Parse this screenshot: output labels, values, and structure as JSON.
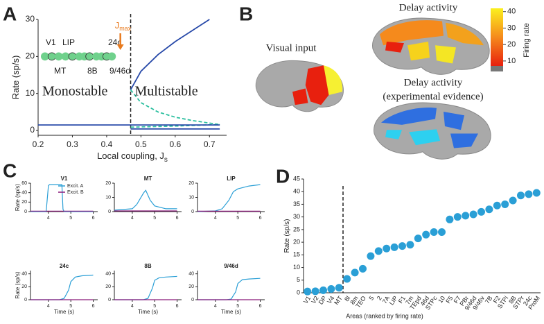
{
  "panel_labels": [
    "A",
    "B",
    "C",
    "D"
  ],
  "brain": {
    "visual_input": "Visual input",
    "delay_activity": "Delay activity",
    "delay_evidence": [
      "Delay activity",
      "(experimental evidence)"
    ],
    "colorbar": {
      "lim": [
        7,
        42
      ],
      "ticks": [
        10,
        20,
        30,
        40
      ],
      "label": "Firing rate"
    }
  },
  "chart_data": [
    {
      "type": "line",
      "xlabel": "Local coupling, J",
      "xlabel_sub": "s",
      "ylabel": "Rate (sp/s)",
      "xlim": [
        0.2,
        0.75
      ],
      "xticks": [
        0.2,
        0.3,
        0.4,
        0.5,
        0.6,
        0.7
      ],
      "ylim": [
        -1.3,
        30
      ],
      "yticks": [
        0,
        10,
        20,
        30
      ],
      "vline": 0.47,
      "regions": [
        "Monostable",
        "Multistable"
      ],
      "marker_label": "J",
      "marker_label_sub": "max",
      "marker_x": 0.44,
      "annotations": [
        "V1",
        "LIP",
        "24c",
        "MT",
        "8B",
        "9/46d"
      ],
      "series": [
        {
          "color": "#2648a8",
          "dash": false,
          "x": [
            0.47,
            0.5,
            0.55,
            0.6,
            0.65,
            0.7
          ],
          "values": [
            11,
            16,
            20.5,
            24,
            27,
            30
          ]
        },
        {
          "color": "#2bbf9f",
          "dash": true,
          "x": [
            0.47,
            0.5,
            0.55,
            0.6,
            0.65,
            0.7,
            0.73
          ],
          "values": [
            11,
            7.5,
            5,
            3.6,
            2.7,
            2,
            1.6
          ]
        },
        {
          "color": "#2bbf9f",
          "dash": true,
          "x": [
            0.47,
            0.6,
            0.73
          ],
          "values": [
            0.9,
            1.2,
            1.6
          ]
        },
        {
          "color": "#2648a8",
          "dash": false,
          "x": [
            0.2,
            0.73
          ],
          "values": [
            1.5,
            1.5
          ]
        },
        {
          "color": "#2648a8",
          "dash": false,
          "x": [
            0.47,
            0.73
          ],
          "values": [
            0.4,
            0.4
          ]
        }
      ],
      "points": {
        "color": "#6fd18c",
        "x": [
          0.22,
          0.24,
          0.26,
          0.28,
          0.3,
          0.32,
          0.335,
          0.35,
          0.37,
          0.385,
          0.4,
          0.415
        ],
        "values": [
          20,
          20,
          20,
          20,
          20,
          20,
          20,
          20,
          20,
          20,
          20,
          20
        ]
      }
    },
    {
      "type": "line",
      "title": "V1",
      "ylabel": "Rate (sp/s)",
      "xlim": [
        3.2,
        6.2
      ],
      "xticks": [
        4,
        5,
        6
      ],
      "ylim": [
        0,
        60
      ],
      "yticks": [
        0,
        20,
        40,
        60
      ],
      "series": [
        {
          "name": "Excit. A",
          "color": "#2a9fd6",
          "x": [
            3.2,
            3.9,
            4.0,
            4.05,
            4.6,
            4.65,
            4.7,
            6
          ],
          "values": [
            0,
            0,
            55,
            57,
            57,
            5,
            0,
            0
          ]
        },
        {
          "name": "Excit. B",
          "color": "#8b1a7a",
          "x": [
            3.2,
            6
          ],
          "values": [
            1,
            1
          ]
        }
      ]
    },
    {
      "type": "line",
      "title": "MT",
      "xlim": [
        3.2,
        6.2
      ],
      "xticks": [
        4,
        5,
        6
      ],
      "ylim": [
        0,
        20
      ],
      "yticks": [
        0,
        10,
        20
      ],
      "series": [
        {
          "color": "#2a9fd6",
          "x": [
            3.2,
            4,
            4.2,
            4.5,
            4.6,
            4.8,
            5,
            5.5,
            6
          ],
          "values": [
            1,
            2,
            5,
            13,
            15,
            8,
            4,
            2,
            2
          ]
        },
        {
          "color": "#8b1a7a",
          "x": [
            3.2,
            6
          ],
          "values": [
            0.5,
            0.5
          ]
        }
      ]
    },
    {
      "type": "line",
      "title": "LIP",
      "xlim": [
        3.2,
        6.2
      ],
      "xticks": [
        4,
        5,
        6
      ],
      "ylim": [
        0,
        20
      ],
      "yticks": [
        0,
        10,
        20
      ],
      "series": [
        {
          "color": "#2a9fd6",
          "x": [
            3.2,
            4,
            4.3,
            4.6,
            4.8,
            5,
            5.5,
            6
          ],
          "values": [
            0,
            0.5,
            2,
            8,
            14,
            16,
            18,
            19
          ]
        },
        {
          "color": "#8b1a7a",
          "x": [
            3.2,
            6
          ],
          "values": [
            0.3,
            0.3
          ]
        }
      ]
    },
    {
      "type": "line",
      "title": "24c",
      "ylabel": "Rate (sp/s)",
      "xlabel": "Time (s)",
      "xlim": [
        3.2,
        6.2
      ],
      "xticks": [
        4,
        5,
        6
      ],
      "ylim": [
        0,
        45
      ],
      "yticks": [
        0,
        20,
        40
      ],
      "series": [
        {
          "color": "#2a9fd6",
          "x": [
            3.2,
            4.5,
            4.7,
            4.9,
            5,
            5.2,
            5.5,
            6
          ],
          "values": [
            0,
            0,
            2,
            15,
            28,
            35,
            37,
            38
          ]
        },
        {
          "color": "#8b1a7a",
          "x": [
            3.2,
            6
          ],
          "values": [
            0,
            0
          ]
        }
      ]
    },
    {
      "type": "line",
      "title": "8B",
      "xlabel": "Time (s)",
      "xlim": [
        3.2,
        6.2
      ],
      "xticks": [
        4,
        5,
        6
      ],
      "ylim": [
        0,
        45
      ],
      "yticks": [
        0,
        20,
        40
      ],
      "series": [
        {
          "color": "#2a9fd6",
          "x": [
            3.2,
            4.5,
            4.7,
            4.9,
            5,
            5.2,
            5.5,
            6
          ],
          "values": [
            0,
            0,
            2,
            18,
            30,
            34,
            35,
            36
          ]
        },
        {
          "color": "#8b1a7a",
          "x": [
            3.2,
            6
          ],
          "values": [
            0,
            0
          ]
        }
      ]
    },
    {
      "type": "line",
      "title": "9/46d",
      "xlabel": "Time (s)",
      "xlim": [
        3.2,
        6.2
      ],
      "xticks": [
        4,
        5,
        6
      ],
      "ylim": [
        0,
        45
      ],
      "yticks": [
        0,
        20,
        40
      ],
      "series": [
        {
          "color": "#2a9fd6",
          "x": [
            3.2,
            4.5,
            4.7,
            4.9,
            5,
            5.2,
            5.5,
            6
          ],
          "values": [
            0,
            0,
            1,
            12,
            25,
            31,
            32,
            33
          ]
        },
        {
          "color": "#8b1a7a",
          "x": [
            3.2,
            6
          ],
          "values": [
            0,
            0
          ]
        }
      ]
    },
    {
      "type": "scatter",
      "xlabel": "Areas (ranked by firing rate)",
      "ylabel": "Rate (sp/s)",
      "color": "#2a9fd6",
      "categories": [
        "V1",
        "V2",
        "DP",
        "V4",
        "MT",
        "8l",
        "8m",
        "TEO",
        "5",
        "2",
        "7A",
        "LIP",
        "F1",
        "7m",
        "TEpd",
        "46d",
        "STPc",
        "10",
        "F5",
        "F7",
        "PBr",
        "9/46d",
        "9/46v",
        "7B",
        "F2",
        "STPi",
        "8B",
        "STPr",
        "24c",
        "ProM"
      ],
      "values": [
        0.5,
        0.6,
        1,
        1.5,
        2,
        5.5,
        8,
        9.5,
        14.5,
        16.5,
        17.5,
        18,
        18.5,
        19,
        21.5,
        23,
        24,
        24,
        29,
        30,
        30.5,
        31,
        32,
        33,
        34.5,
        35,
        36.5,
        38.5,
        39,
        39.5
      ],
      "ylim": [
        0,
        45
      ],
      "yticks": [
        0,
        5,
        10,
        15,
        20,
        25,
        30,
        35,
        40,
        45
      ]
    }
  ]
}
